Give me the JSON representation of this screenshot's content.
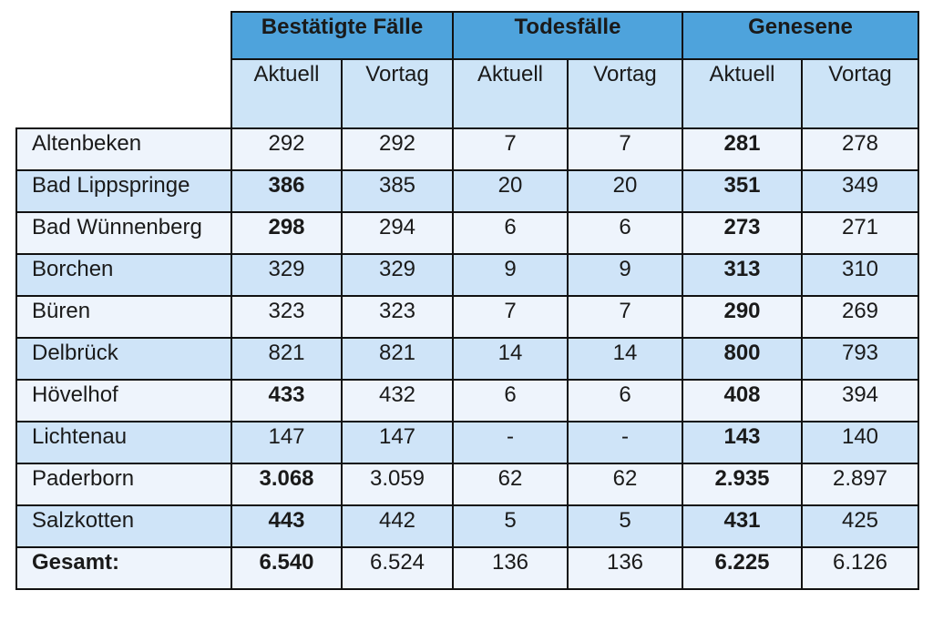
{
  "groups": [
    "Bestätigte Fälle",
    "Todesfälle",
    "Genesene"
  ],
  "subheaders": [
    "Aktuell",
    "Vortag",
    "Aktuell",
    "Vortag",
    "Aktuell",
    "Vortag"
  ],
  "rows": [
    {
      "name": "Altenbeken",
      "values": [
        "292",
        "292",
        "7",
        "7",
        "281",
        "278"
      ],
      "bold": [
        false,
        false,
        false,
        false,
        true,
        false
      ]
    },
    {
      "name": "Bad Lippspringe",
      "values": [
        "386",
        "385",
        "20",
        "20",
        "351",
        "349"
      ],
      "bold": [
        true,
        false,
        false,
        false,
        true,
        false
      ]
    },
    {
      "name": "Bad Wünnenberg",
      "values": [
        "298",
        "294",
        "6",
        "6",
        "273",
        "271"
      ],
      "bold": [
        true,
        false,
        false,
        false,
        true,
        false
      ]
    },
    {
      "name": "Borchen",
      "values": [
        "329",
        "329",
        "9",
        "9",
        "313",
        "310"
      ],
      "bold": [
        false,
        false,
        false,
        false,
        true,
        false
      ]
    },
    {
      "name": "Büren",
      "values": [
        "323",
        "323",
        "7",
        "7",
        "290",
        "269"
      ],
      "bold": [
        false,
        false,
        false,
        false,
        true,
        false
      ]
    },
    {
      "name": "Delbrück",
      "values": [
        "821",
        "821",
        "14",
        "14",
        "800",
        "793"
      ],
      "bold": [
        false,
        false,
        false,
        false,
        true,
        false
      ]
    },
    {
      "name": "Hövelhof",
      "values": [
        "433",
        "432",
        "6",
        "6",
        "408",
        "394"
      ],
      "bold": [
        true,
        false,
        false,
        false,
        true,
        false
      ]
    },
    {
      "name": "Lichtenau",
      "values": [
        "147",
        "147",
        "-",
        "-",
        "143",
        "140"
      ],
      "bold": [
        false,
        false,
        false,
        false,
        true,
        false
      ]
    },
    {
      "name": "Paderborn",
      "values": [
        "3.068",
        "3.059",
        "62",
        "62",
        "2.935",
        "2.897"
      ],
      "bold": [
        true,
        false,
        false,
        false,
        true,
        false
      ]
    },
    {
      "name": "Salzkotten",
      "values": [
        "443",
        "442",
        "5",
        "5",
        "431",
        "425"
      ],
      "bold": [
        true,
        false,
        false,
        false,
        true,
        false
      ]
    },
    {
      "name": "Gesamt:",
      "values": [
        "6.540",
        "6.524",
        "136",
        "136",
        "6.225",
        "6.126"
      ],
      "bold": [
        true,
        false,
        false,
        false,
        true,
        false
      ],
      "total": true
    }
  ]
}
